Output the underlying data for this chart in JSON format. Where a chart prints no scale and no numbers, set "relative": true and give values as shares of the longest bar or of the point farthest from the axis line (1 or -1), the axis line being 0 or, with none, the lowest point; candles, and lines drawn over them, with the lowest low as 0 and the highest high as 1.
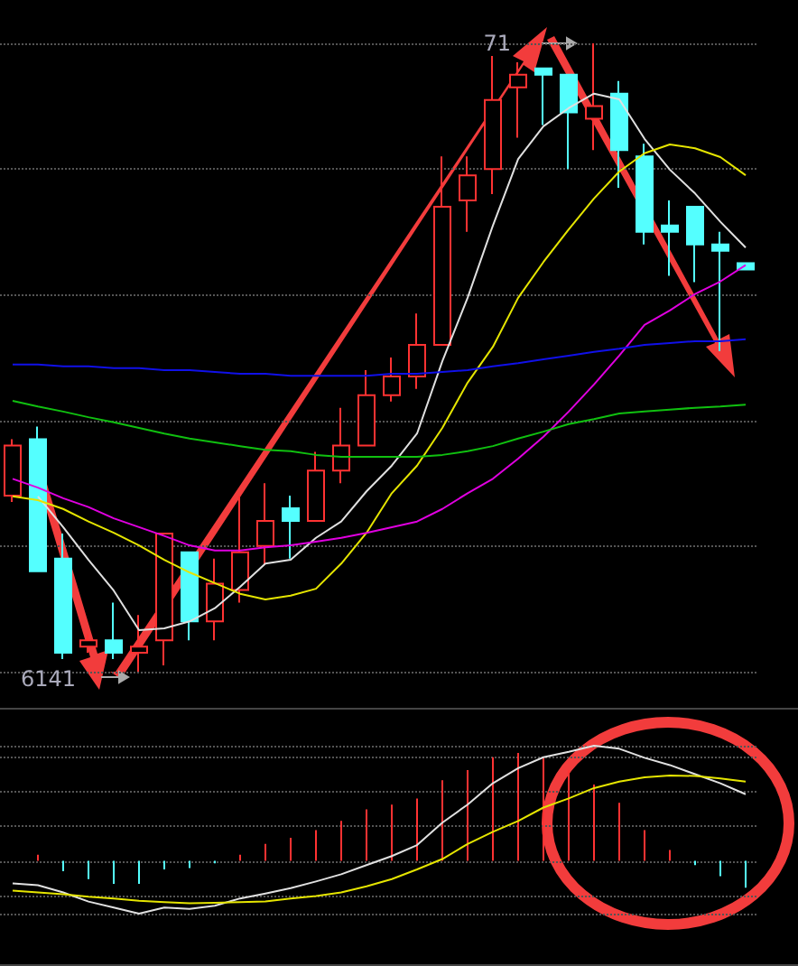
{
  "chart_data": [
    {
      "type": "candlestick",
      "relative": true,
      "grid": "y",
      "categories": [
        null,
        null,
        null,
        null,
        null,
        null,
        null,
        null,
        null,
        null,
        null,
        null,
        null,
        null,
        null,
        null,
        null,
        null,
        null,
        null,
        null,
        null,
        null,
        null,
        null,
        null,
        null,
        null,
        null,
        null
      ],
      "ohlc": [
        [
          0.28,
          0.37,
          0.27,
          0.36
        ],
        [
          0.37,
          0.39,
          0.16,
          0.16
        ],
        [
          0.18,
          0.22,
          0.02,
          0.03
        ],
        [
          0.04,
          0.06,
          0.03,
          0.05
        ],
        [
          0.05,
          0.11,
          0.02,
          0.03
        ],
        [
          0.03,
          0.09,
          0,
          0.04
        ],
        [
          0.05,
          0.22,
          0.01,
          0.22
        ],
        [
          0.19,
          0.19,
          0.05,
          0.08
        ],
        [
          0.08,
          0.18,
          0.05,
          0.14
        ],
        [
          0.13,
          0.28,
          0.11,
          0.19
        ],
        [
          0.2,
          0.3,
          0.17,
          0.24
        ],
        [
          0.26,
          0.28,
          0.18,
          0.24
        ],
        [
          0.24,
          0.35,
          0.24,
          0.32
        ],
        [
          0.32,
          0.42,
          0.3,
          0.36
        ],
        [
          0.36,
          0.48,
          0.36,
          0.44
        ],
        [
          0.44,
          0.5,
          0.43,
          0.47
        ],
        [
          0.47,
          0.57,
          0.45,
          0.52
        ],
        [
          0.52,
          0.82,
          0.52,
          0.74
        ],
        [
          0.75,
          0.82,
          0.7,
          0.79
        ],
        [
          0.8,
          0.98,
          0.76,
          0.91
        ],
        [
          0.93,
          0.97,
          0.85,
          0.95
        ],
        [
          0.96,
          0.96,
          0.87,
          0.95
        ],
        [
          0.95,
          0.95,
          0.8,
          0.89
        ],
        [
          0.88,
          1,
          0.83,
          0.9
        ],
        [
          0.92,
          0.94,
          0.77,
          0.83
        ],
        [
          0.82,
          0.84,
          0.68,
          0.7
        ],
        [
          0.71,
          0.75,
          0.63,
          0.7
        ],
        [
          0.74,
          0.74,
          0.62,
          0.68
        ],
        [
          0.68,
          0.7,
          0.51,
          0.67
        ],
        [
          0.65,
          0.65,
          0.64,
          0.64
        ]
      ],
      "series": [
        {
          "type": "line",
          "color": "#e0e0e0",
          "values": [
            null,
            0.279,
            0.23,
            0.178,
            0.129,
            0.066,
            0.069,
            0.08,
            0.101,
            0.135,
            0.172,
            0.178,
            0.213,
            0.239,
            0.287,
            0.328,
            0.379,
            0.494,
            0.595,
            0.71,
            0.816,
            0.868,
            0.897,
            0.92,
            0.911,
            0.848,
            0.799,
            0.761,
            0.716,
            0.675
          ]
        },
        {
          "type": "line",
          "color": "#e5e500",
          "values": [
            0.279,
            0.273,
            0.259,
            0.239,
            0.221,
            0.201,
            0.178,
            0.158,
            0.141,
            0.124,
            0.115,
            0.121,
            0.132,
            0.172,
            0.221,
            0.284,
            0.328,
            0.388,
            0.46,
            0.517,
            0.595,
            0.652,
            0.704,
            0.753,
            0.796,
            0.825,
            0.839,
            0.833,
            0.819,
            0.79
          ]
        },
        {
          "type": "line",
          "color": "#e000e0",
          "values": [
            0.307,
            0.293,
            0.276,
            0.262,
            0.244,
            0.23,
            0.216,
            0.201,
            0.193,
            0.193,
            0.198,
            0.201,
            0.207,
            0.213,
            0.221,
            0.23,
            0.239,
            0.259,
            0.284,
            0.307,
            0.339,
            0.374,
            0.414,
            0.457,
            0.503,
            0.552,
            0.575,
            0.601,
            0.621,
            0.647
          ]
        },
        {
          "type": "line",
          "color": "#1010e8",
          "values": [
            0.489,
            0.489,
            0.486,
            0.486,
            0.483,
            0.483,
            0.48,
            0.48,
            0.477,
            0.474,
            0.474,
            0.471,
            0.471,
            0.471,
            0.471,
            0.474,
            0.474,
            0.477,
            0.48,
            0.486,
            0.491,
            0.497,
            0.503,
            0.509,
            0.514,
            0.52,
            0.523,
            0.526,
            0.526,
            0.529
          ]
        },
        {
          "type": "line",
          "color": "#10c010",
          "values": [
            0.431,
            0.422,
            0.414,
            0.405,
            0.397,
            0.388,
            0.379,
            0.371,
            0.365,
            0.359,
            0.353,
            0.351,
            0.345,
            0.342,
            0.342,
            0.342,
            0.342,
            0.345,
            0.351,
            0.359,
            0.371,
            0.382,
            0.394,
            0.402,
            0.411,
            0.414,
            0.417,
            0.42,
            0.422,
            0.425
          ]
        }
      ],
      "annotations": [
        "6141",
        "71"
      ]
    },
    {
      "type": "bar",
      "relative": true,
      "grid": "y",
      "categories": [
        null,
        null,
        null,
        null,
        null,
        null,
        null,
        null,
        null,
        null,
        null,
        null,
        null,
        null,
        null,
        null,
        null,
        null,
        null,
        null,
        null,
        null,
        null,
        null,
        null,
        null,
        null,
        null,
        null,
        null
      ],
      "series": [
        {
          "type": "bar",
          "values": [
            null,
            0.053,
            -0.089,
            -0.158,
            -0.2,
            -0.2,
            -0.074,
            -0.063,
            -0.021,
            0.053,
            0.147,
            0.2,
            0.268,
            0.347,
            0.447,
            0.489,
            0.542,
            0.7,
            0.789,
            0.9,
            0.937,
            0.895,
            0.789,
            0.663,
            0.505,
            0.268,
            0.095,
            -0.037,
            -0.132,
            -0.232
          ],
          "colors": [
            "#ff3232",
            "#ff3232",
            "#54ffff",
            "#54ffff",
            "#54ffff",
            "#54ffff",
            "#54ffff",
            "#54ffff",
            "#54ffff",
            "#ff3232",
            "#ff3232",
            "#ff3232",
            "#ff3232",
            "#ff3232",
            "#ff3232",
            "#ff3232",
            "#ff3232",
            "#ff3232",
            "#ff3232",
            "#ff3232",
            "#ff3232",
            "#ff3232",
            "#ff3232",
            "#ff3232",
            "#ff3232",
            "#ff3232",
            "#ff3232",
            "#54ffff",
            "#54ffff",
            "#54ffff"
          ]
        },
        {
          "type": "line",
          "color": "#e0e0e0",
          "values": [
            -0.195,
            -0.211,
            -0.274,
            -0.353,
            -0.405,
            -0.458,
            -0.405,
            -0.416,
            -0.389,
            -0.326,
            -0.284,
            -0.237,
            -0.179,
            -0.116,
            -0.037,
            0.042,
            0.137,
            0.332,
            0.489,
            0.674,
            0.805,
            0.9,
            0.947,
            1,
            0.974,
            0.895,
            0.832,
            0.753,
            0.674,
            0.579
          ]
        },
        {
          "type": "line",
          "color": "#e5e500",
          "values": [
            -0.258,
            -0.274,
            -0.289,
            -0.311,
            -0.326,
            -0.347,
            -0.358,
            -0.368,
            -0.363,
            -0.358,
            -0.353,
            -0.326,
            -0.305,
            -0.274,
            -0.221,
            -0.158,
            -0.074,
            0.016,
            0.147,
            0.253,
            0.347,
            0.463,
            0.542,
            0.632,
            0.689,
            0.726,
            0.742,
            0.737,
            0.716,
            0.689
          ]
        }
      ]
    }
  ]
}
